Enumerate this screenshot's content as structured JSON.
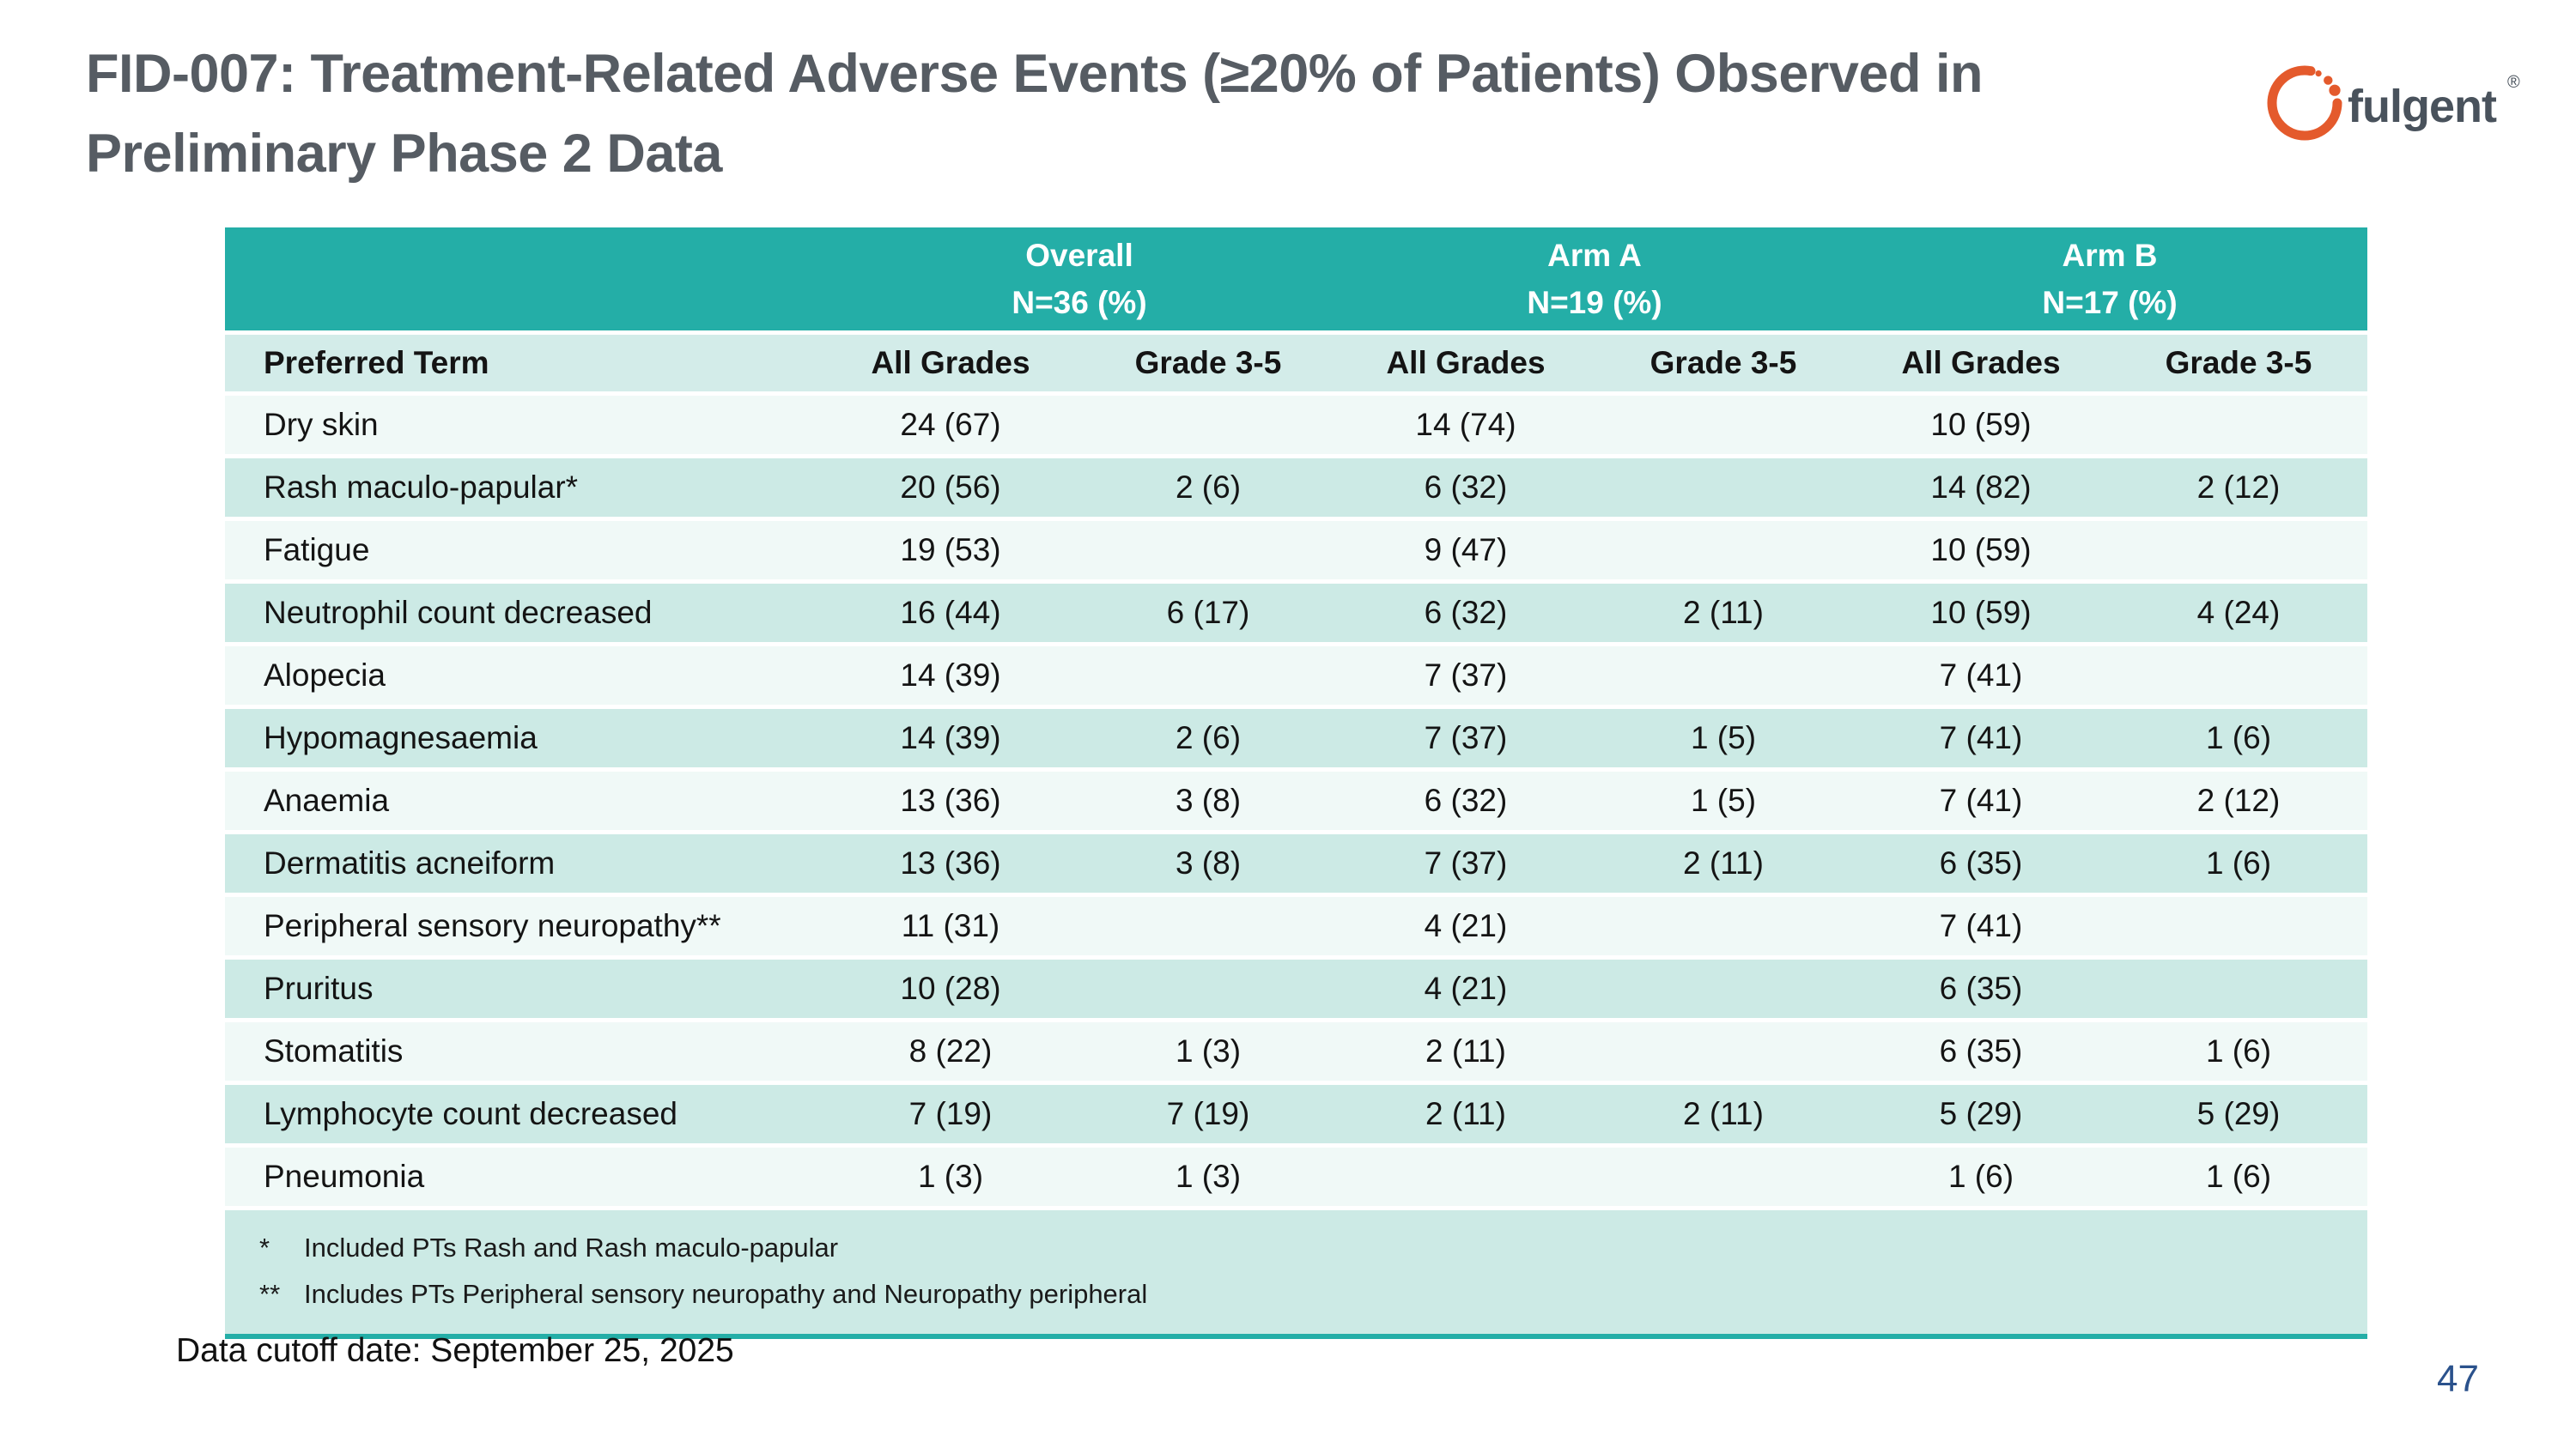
{
  "slide": {
    "title": "FID-007: Treatment-Related Adverse Events (≥20% of Patients) Observed in Preliminary Phase 2 Data",
    "data_cutoff": "Data cutoff date: September 25, 2025",
    "page_number": "47"
  },
  "logo": {
    "brand": "fulgent",
    "registered_mark": "®",
    "ring_color": "#e45a2c",
    "text_color": "#49525c"
  },
  "colors": {
    "header_teal": "#24aea7",
    "column_header_bg": "#d3ece9",
    "row_pale": "#f0f9f7",
    "row_stripe": "#cceae5",
    "page_number_navy": "#2b528c",
    "title_gray": "#565c63"
  },
  "table": {
    "groups": [
      {
        "name": "Overall",
        "n": "N=36 (%)"
      },
      {
        "name": "Arm A",
        "n": "N=19 (%)"
      },
      {
        "name": "Arm B",
        "n": "N=17 (%)"
      }
    ],
    "columns": [
      "Preferred Term",
      "All Grades",
      "Grade 3-5",
      "All Grades",
      "Grade 3-5",
      "All Grades",
      "Grade 3-5"
    ],
    "rows": [
      {
        "term": "Dry skin",
        "cells": [
          "24 (67)",
          "",
          "14 (74)",
          "",
          "10 (59)",
          ""
        ]
      },
      {
        "term": "Rash maculo-papular*",
        "cells": [
          "20 (56)",
          "2 (6)",
          "6 (32)",
          "",
          "14 (82)",
          "2 (12)"
        ]
      },
      {
        "term": "Fatigue",
        "cells": [
          "19 (53)",
          "",
          "9 (47)",
          "",
          "10 (59)",
          ""
        ]
      },
      {
        "term": "Neutrophil count decreased",
        "cells": [
          "16 (44)",
          "6 (17)",
          "6 (32)",
          "2 (11)",
          "10 (59)",
          "4 (24)"
        ]
      },
      {
        "term": "Alopecia",
        "cells": [
          "14 (39)",
          "",
          "7 (37)",
          "",
          "7 (41)",
          ""
        ]
      },
      {
        "term": "Hypomagnesaemia",
        "cells": [
          "14 (39)",
          "2 (6)",
          "7 (37)",
          "1 (5)",
          "7 (41)",
          "1 (6)"
        ]
      },
      {
        "term": "Anaemia",
        "cells": [
          "13 (36)",
          "3 (8)",
          "6 (32)",
          "1 (5)",
          "7 (41)",
          "2 (12)"
        ]
      },
      {
        "term": "Dermatitis acneiform",
        "cells": [
          "13 (36)",
          "3 (8)",
          "7 (37)",
          "2 (11)",
          "6 (35)",
          "1 (6)"
        ]
      },
      {
        "term": "Peripheral sensory neuropathy**",
        "cells": [
          "11 (31)",
          "",
          "4 (21)",
          "",
          "7 (41)",
          ""
        ]
      },
      {
        "term": "Pruritus",
        "cells": [
          "10 (28)",
          "",
          "4 (21)",
          "",
          "6 (35)",
          ""
        ]
      },
      {
        "term": "Stomatitis",
        "cells": [
          "8 (22)",
          "1 (3)",
          "2 (11)",
          "",
          "6 (35)",
          "1 (6)"
        ]
      },
      {
        "term": "Lymphocyte count decreased",
        "cells": [
          "7 (19)",
          "7 (19)",
          "2 (11)",
          "2 (11)",
          "5 (29)",
          "5 (29)"
        ]
      },
      {
        "term": "Pneumonia",
        "cells": [
          "1 (3)",
          "1 (3)",
          "",
          "",
          "1 (6)",
          "1 (6)"
        ]
      }
    ],
    "footnotes": [
      {
        "marker": "*",
        "text": "Included PTs Rash and Rash maculo-papular"
      },
      {
        "marker": "**",
        "text": "Includes PTs Peripheral sensory neuropathy and Neuropathy peripheral"
      }
    ]
  }
}
